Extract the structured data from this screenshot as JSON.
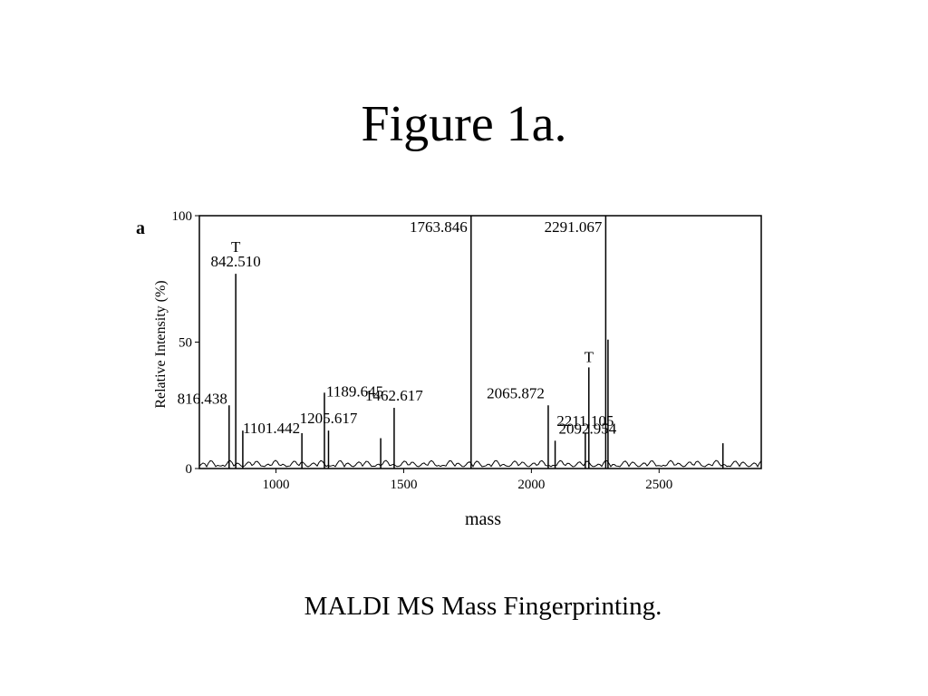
{
  "slide_title": "Figure 1a.",
  "caption": "MALDI MS Mass Fingerprinting.",
  "chart_data": {
    "type": "spectrum",
    "panel_label": "a",
    "x_label": "mass",
    "y_label": "Relative Intensity (%)",
    "xlim": [
      700,
      2900
    ],
    "xticks": [
      1000,
      1500,
      2000,
      2500
    ],
    "ylim": [
      0,
      100
    ],
    "yticks": [
      0,
      50,
      100
    ],
    "color": "#000000",
    "peaks": {
      "x": [
        816.438,
        842.51,
        870,
        1101.442,
        1189.645,
        1205.617,
        1410,
        1462.617,
        1763.846,
        2065.872,
        2092.954,
        2211.105,
        2225,
        2291.067,
        2300,
        2750
      ],
      "values": [
        25,
        77,
        15,
        14,
        30,
        15,
        12,
        24,
        100,
        25,
        11,
        14,
        40,
        100,
        51,
        10
      ],
      "labels": [
        "816.438",
        "842.510",
        null,
        "1101.442",
        "1189.645",
        "1205.617",
        null,
        "1462.617",
        "1763.846",
        "2065.872",
        "2092.954",
        "2211.105",
        null,
        "2291.067",
        null,
        null
      ]
    },
    "annotations": [
      "T",
      "T"
    ]
  }
}
